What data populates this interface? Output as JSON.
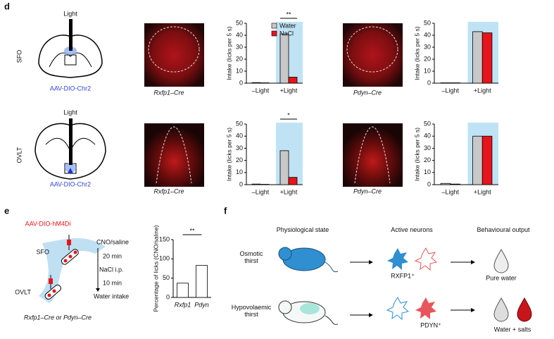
{
  "panel_d": {
    "label": "d",
    "light_sfo": "Light",
    "virus_sfo": "AAV-DIO-Chr2",
    "region_sfo": "SFO",
    "light_ovlt": "Light",
    "virus_ovlt": "AAV-DIO-Chr2",
    "region_ovlt": "OVLT",
    "line_1": "Rxfp1–Cre",
    "line_2": "Pdyn–Cre",
    "line_3": "Rxfp1–Cre",
    "line_4": "Pdyn–Cre"
  },
  "panel_e": {
    "label": "e",
    "virus": "AAV-DIO-hM4Di",
    "sfo": "SFO",
    "ovlt": "OVLT",
    "steps": [
      "CNO/saline",
      "20 min",
      "NaCl i.p.",
      "10 min",
      "Water intake"
    ],
    "mice": "Rxfp1–Cre or Pdyn–Cre"
  },
  "panel_f": {
    "label": "f",
    "headers": [
      "Physiological state",
      "Active neurons",
      "Behavioural output"
    ],
    "state_1": "Osmotic thirst",
    "state_2": "Hypovolaemic thirst",
    "neuron_1": "RXFP1⁺",
    "neuron_2": "PDYN⁺",
    "output_1": "Pure water",
    "output_2": "Water + salts"
  },
  "chart_data": [
    {
      "type": "bar",
      "ylabel": "Intake (licks per 5 s)",
      "categories": [
        "–Light",
        "+Light"
      ],
      "series": [
        {
          "name": "Water",
          "color": "#c8c8c8",
          "values": [
            0.5,
            41
          ]
        },
        {
          "name": "NaCl",
          "color": "#e8141b",
          "values": [
            0.3,
            5
          ]
        }
      ],
      "ylim": [
        0,
        50
      ],
      "yticks": [
        0,
        10,
        20,
        30,
        40,
        50
      ],
      "annotation": "**",
      "legend": "upper right"
    },
    {
      "type": "bar",
      "ylabel": "Intake (licks per 5 s)",
      "categories": [
        "–Light",
        "+Light"
      ],
      "series": [
        {
          "color": "#c8c8c8",
          "values": [
            0.3,
            43
          ]
        },
        {
          "color": "#e8141b",
          "values": [
            0.3,
            42
          ]
        }
      ],
      "ylim": [
        0,
        50
      ],
      "yticks": [
        0,
        10,
        20,
        30,
        40,
        50
      ]
    },
    {
      "type": "bar",
      "ylabel": "Intake (licks per 5 s)",
      "categories": [
        "–Light",
        "+Light"
      ],
      "series": [
        {
          "color": "#c8c8c8",
          "values": [
            0.5,
            28
          ]
        },
        {
          "color": "#e8141b",
          "values": [
            0.3,
            6
          ]
        }
      ],
      "ylim": [
        0,
        50
      ],
      "yticks": [
        0,
        10,
        20,
        30,
        40,
        50
      ],
      "annotation": "*"
    },
    {
      "type": "bar",
      "ylabel": "Intake (licks per 5 s)",
      "categories": [
        "–Light",
        "+Light"
      ],
      "series": [
        {
          "color": "#c8c8c8",
          "values": [
            1,
            40
          ]
        },
        {
          "color": "#e8141b",
          "values": [
            0.5,
            40
          ]
        }
      ],
      "ylim": [
        0,
        50
      ],
      "yticks": [
        0,
        10,
        20,
        30,
        40,
        50
      ]
    },
    {
      "type": "bar",
      "ylabel": "Percentage of licks (CNO/saline)",
      "categories": [
        "Rxfp1",
        "Pdyn"
      ],
      "values": [
        37,
        83
      ],
      "color": "#ffffff",
      "ylim": [
        0,
        150
      ],
      "yticks": [
        0,
        50,
        100,
        150
      ],
      "annotation": "**"
    }
  ]
}
